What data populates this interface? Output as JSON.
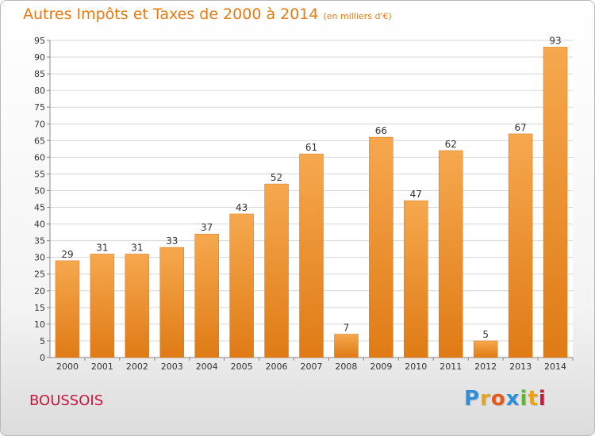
{
  "title": "Autres Impôts et Taxes de 2000 à 2014",
  "unit_label": "(en milliers d'€)",
  "commune": "BOUSSOIS",
  "logo": {
    "text": "Proxiti",
    "colors": [
      "#2e8fd8",
      "#e8a31a",
      "#e3591b",
      "#2e8fd8",
      "#5fb635",
      "#e8a31a",
      "#c8183b"
    ]
  },
  "colors": {
    "title": "#ea7a10",
    "bar_light": "#f6a84e",
    "bar_dark": "#df7b15",
    "commune": "#c8183b"
  },
  "chart_data": {
    "type": "bar",
    "categories": [
      "2000",
      "2001",
      "2002",
      "2003",
      "2004",
      "2005",
      "2006",
      "2007",
      "2008",
      "2009",
      "2010",
      "2011",
      "2012",
      "2013",
      "2014"
    ],
    "values": [
      29,
      31,
      31,
      33,
      37,
      43,
      52,
      61,
      7,
      66,
      47,
      62,
      5,
      67,
      93
    ],
    "ylim": [
      0,
      95
    ],
    "yticks": [
      0,
      5,
      10,
      15,
      20,
      25,
      30,
      35,
      40,
      45,
      50,
      55,
      60,
      65,
      70,
      75,
      80,
      85,
      90,
      95
    ],
    "grid": true,
    "xlabel": "",
    "ylabel": ""
  }
}
